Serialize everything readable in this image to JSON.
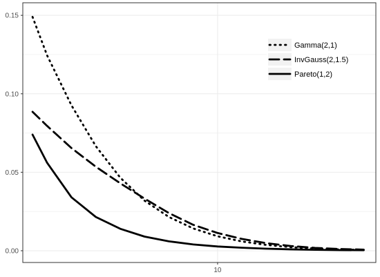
{
  "chart_data": {
    "type": "line",
    "title": "",
    "xlabel": "",
    "ylabel": "",
    "xlim": [
      2,
      16.5
    ],
    "ylim": [
      -0.0075,
      0.158
    ],
    "x_ticks": [
      10
    ],
    "x_tick_labels": [
      "10"
    ],
    "y_ticks": [
      0.0,
      0.05,
      0.1,
      0.15
    ],
    "y_tick_labels": [
      "0.00",
      "0.05",
      "0.10",
      "0.15"
    ],
    "grid": true,
    "legend_position": "top-right",
    "x": [
      2.4,
      3,
      4,
      5,
      6,
      7,
      8,
      9,
      10,
      11,
      12,
      13,
      14,
      15,
      16
    ],
    "series": [
      {
        "name": "Gamma(2,1)",
        "linestyle": "dotted",
        "values": [
          0.149,
          0.1244,
          0.0926,
          0.0666,
          0.0466,
          0.0319,
          0.0215,
          0.0142,
          0.0092,
          0.0059,
          0.0037,
          0.0023,
          0.0014,
          0.0008,
          0.0005
        ]
      },
      {
        "name": "InvGauss(2,1.5)",
        "linestyle": "dashed",
        "values": [
          0.0885,
          0.0795,
          0.0654,
          0.0535,
          0.043,
          0.0332,
          0.024,
          0.0165,
          0.0113,
          0.0075,
          0.0048,
          0.003,
          0.0018,
          0.0011,
          0.0007
        ]
      },
      {
        "name": "Pareto(1,2)",
        "linestyle": "solid",
        "values": [
          0.074,
          0.056,
          0.034,
          0.0215,
          0.014,
          0.009,
          0.006,
          0.004,
          0.0027,
          0.0019,
          0.0013,
          0.0009,
          0.0006,
          0.0004,
          0.0003
        ]
      }
    ],
    "colors": {
      "line": "#000000",
      "grid": "#ebebeb",
      "axis": "#333333",
      "tick_text": "#4d4d4d"
    }
  }
}
